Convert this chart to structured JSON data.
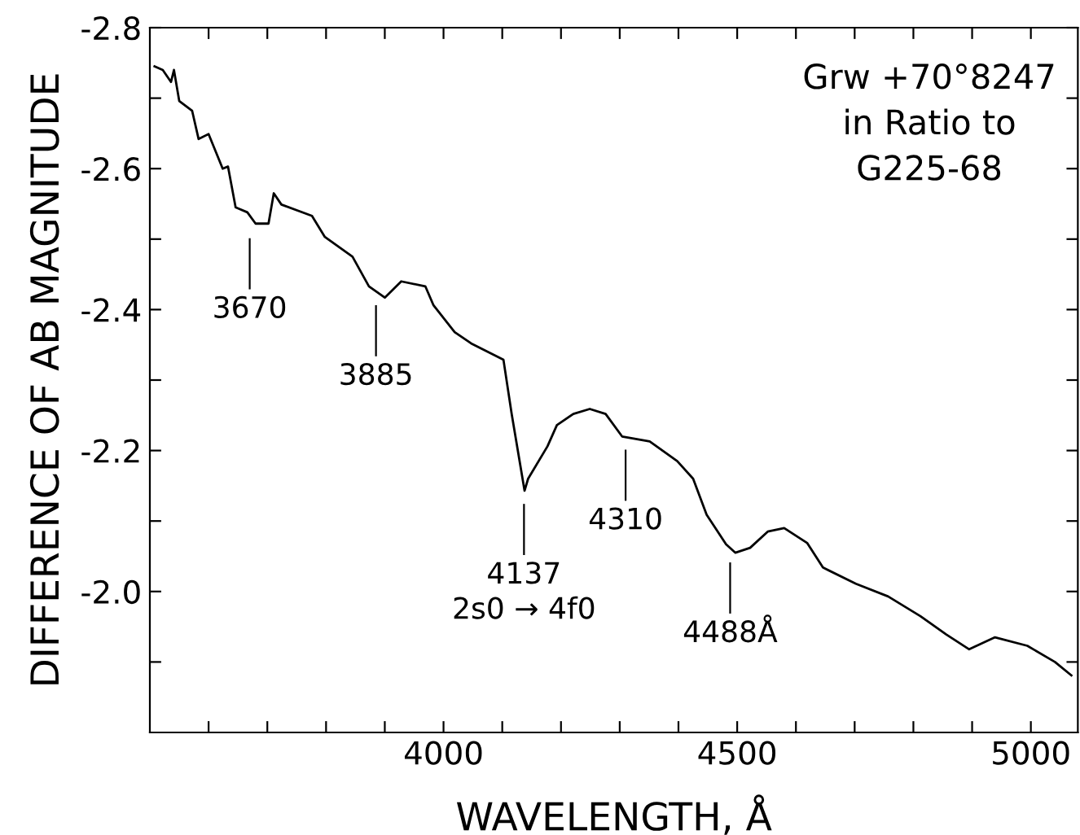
{
  "chart_data": {
    "type": "line",
    "xlabel": "WAVELENGTH, Å",
    "ylabel": "DIFFERENCE OF AB MAGNITUDE",
    "xlim": [
      3500,
      5080
    ],
    "ylim": [
      -1.8,
      -2.8
    ],
    "xticks": [
      {
        "value": 3600,
        "label": null
      },
      {
        "value": 3700,
        "label": null
      },
      {
        "value": 3800,
        "label": null
      },
      {
        "value": 3900,
        "label": null
      },
      4000,
      {
        "value": 4100,
        "label": null
      },
      {
        "value": 4200,
        "label": null
      },
      {
        "value": 4300,
        "label": null
      },
      {
        "value": 4400,
        "label": null
      },
      4500,
      {
        "value": 4600,
        "label": null
      },
      {
        "value": 4700,
        "label": null
      },
      {
        "value": 4800,
        "label": null
      },
      {
        "value": 4900,
        "label": null
      },
      5000
    ],
    "yticks": [
      {
        "value": -1.9,
        "label": null
      },
      {
        "value": -2.0,
        "label": "-2.0"
      },
      {
        "value": -2.1,
        "label": null
      },
      -2.2,
      {
        "value": -2.3,
        "label": null
      },
      -2.4,
      {
        "value": -2.5,
        "label": null
      },
      -2.6,
      {
        "value": -2.7,
        "label": null
      },
      -2.8
    ],
    "grid": false,
    "legend": false,
    "marker": "none",
    "line_style": "solid",
    "series": [
      {
        "color": "#000000",
        "x": [
          3508,
          3522,
          3536,
          3541,
          3550,
          3572,
          3583,
          3600,
          3624,
          3633,
          3646,
          3666,
          3680,
          3702,
          3711,
          3724,
          3776,
          3798,
          3845,
          3873,
          3900,
          3928,
          3969,
          3983,
          4019,
          4047,
          4102,
          4116,
          4138,
          4144,
          4177,
          4193,
          4221,
          4249,
          4276,
          4304,
          4351,
          4398,
          4425,
          4448,
          4481,
          4497,
          4522,
          4552,
          4580,
          4619,
          4646,
          4702,
          4757,
          4812,
          4856,
          4895,
          4939,
          4994,
          5041,
          5069
        ],
        "values": [
          -2.745,
          -2.74,
          -2.723,
          -2.74,
          -2.696,
          -2.682,
          -2.642,
          -2.649,
          -2.6,
          -2.603,
          -2.545,
          -2.538,
          -2.522,
          -2.522,
          -2.565,
          -2.549,
          -2.533,
          -2.503,
          -2.475,
          -2.433,
          -2.417,
          -2.44,
          -2.433,
          -2.406,
          -2.368,
          -2.352,
          -2.329,
          -2.252,
          -2.143,
          -2.16,
          -2.206,
          -2.236,
          -2.252,
          -2.259,
          -2.252,
          -2.22,
          -2.213,
          -2.185,
          -2.16,
          -2.109,
          -2.067,
          -2.055,
          -2.062,
          -2.085,
          -2.09,
          -2.069,
          -2.034,
          -2.011,
          -1.993,
          -1.965,
          -1.939,
          -1.918,
          -1.935,
          -1.923,
          -1.9,
          -1.881
        ]
      }
    ],
    "annotations": [
      "Grw +70°8247\nin Ratio to\nG225-68",
      {
        "text": "3670",
        "x": 3670,
        "y": -2.52
      },
      {
        "text": "3885",
        "x": 3885,
        "y": -2.425
      },
      {
        "text": "4137\n2s0 → 4f0",
        "x": 4137,
        "y": -2.143
      },
      {
        "text": "4310",
        "x": 4310,
        "y": -2.22
      },
      {
        "text": "4488Å",
        "x": 4488,
        "y": -2.06
      }
    ]
  }
}
